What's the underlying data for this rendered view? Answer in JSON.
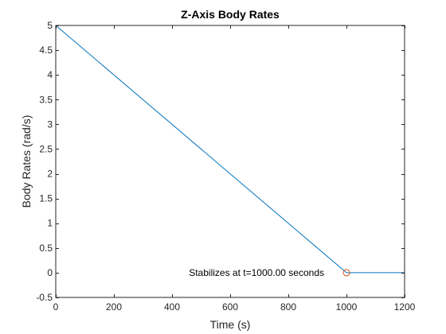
{
  "chart_data": {
    "type": "line",
    "title": "Z-Axis Body Rates",
    "xlabel": "Time (s)",
    "ylabel": "Body Rates (rad/s)",
    "xlim": [
      0,
      1200
    ],
    "ylim": [
      -0.5,
      5
    ],
    "x_ticks": [
      0,
      200,
      400,
      600,
      800,
      1000,
      1200
    ],
    "x_tick_labels": [
      "0",
      "200",
      "400",
      "600",
      "800",
      "1000",
      "1200"
    ],
    "y_ticks": [
      -0.5,
      0,
      0.5,
      1,
      1.5,
      2,
      2.5,
      3,
      3.5,
      4,
      4.5,
      5
    ],
    "y_tick_labels": [
      "-0.5",
      "0",
      "0.5",
      "1",
      "1.5",
      "2",
      "2.5",
      "3",
      "3.5",
      "4",
      "4.5",
      "5"
    ],
    "grid": false,
    "series": [
      {
        "x": [
          0,
          1000,
          1200
        ],
        "y": [
          5,
          0,
          0
        ],
        "color": "#0072BD"
      }
    ],
    "markers": [
      {
        "x": 1000,
        "y": 0,
        "shape": "circle",
        "color": "#D95319"
      }
    ],
    "annotations": [
      {
        "text": "Stabilizes at t=1000.00 seconds",
        "x": 1000,
        "y": 0,
        "anchor": "end"
      }
    ]
  }
}
